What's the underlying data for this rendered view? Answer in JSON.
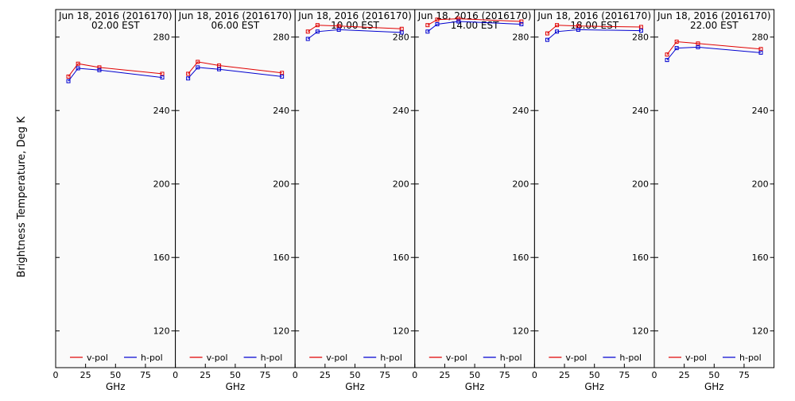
{
  "ylabel": "Brightness Temperature, Deg K",
  "colors": {
    "v_pol": "#e00000",
    "h_pol": "#0000d0",
    "panel_bg": "#fafafa"
  },
  "chart_data": [
    {
      "type": "line",
      "title_line1": "Jun 18, 2016 (2016170)",
      "title_line2": "02.00 EST",
      "xlabel": "GHz",
      "xlim": [
        0,
        100
      ],
      "ylim": [
        100,
        295
      ],
      "xticks": [
        0,
        25,
        50,
        75
      ],
      "yticks": [
        120,
        160,
        200,
        240,
        280
      ],
      "legend_position": "bottom",
      "series": [
        {
          "name": "v-pol",
          "x": [
            10.65,
            18.7,
            36.5,
            89.0
          ],
          "values": [
            258.5,
            265.5,
            263.5,
            260.0
          ]
        },
        {
          "name": "h-pol",
          "x": [
            10.65,
            18.7,
            36.5,
            89.0
          ],
          "values": [
            256.0,
            263.0,
            262.0,
            258.0
          ]
        }
      ]
    },
    {
      "type": "line",
      "title_line1": "Jun 18, 2016 (2016170)",
      "title_line2": "06.00 EST",
      "xlabel": "GHz",
      "xlim": [
        0,
        100
      ],
      "ylim": [
        100,
        295
      ],
      "xticks": [
        0,
        25,
        50,
        75
      ],
      "yticks": [
        120,
        160,
        200,
        240,
        280
      ],
      "legend_position": "bottom",
      "series": [
        {
          "name": "v-pol",
          "x": [
            10.65,
            18.7,
            36.5,
            89.0
          ],
          "values": [
            260.0,
            266.5,
            264.5,
            260.5
          ]
        },
        {
          "name": "h-pol",
          "x": [
            10.65,
            18.7,
            36.5,
            89.0
          ],
          "values": [
            257.5,
            263.5,
            262.5,
            258.5
          ]
        }
      ]
    },
    {
      "type": "line",
      "title_line1": "Jun 18, 2016 (2016170)",
      "title_line2": "10.00 EST",
      "xlabel": "GHz",
      "xlim": [
        0,
        100
      ],
      "ylim": [
        100,
        295
      ],
      "xticks": [
        0,
        25,
        50,
        75
      ],
      "yticks": [
        120,
        160,
        200,
        240,
        280
      ],
      "legend_position": "bottom",
      "series": [
        {
          "name": "v-pol",
          "x": [
            10.65,
            18.7,
            36.5,
            89.0
          ],
          "values": [
            283.0,
            286.5,
            286.0,
            284.5
          ]
        },
        {
          "name": "h-pol",
          "x": [
            10.65,
            18.7,
            36.5,
            89.0
          ],
          "values": [
            279.0,
            283.0,
            284.0,
            282.5
          ]
        }
      ]
    },
    {
      "type": "line",
      "title_line1": "Jun 18, 2016 (2016170)",
      "title_line2": "14.00 EST",
      "xlabel": "GHz",
      "xlim": [
        0,
        100
      ],
      "ylim": [
        100,
        295
      ],
      "xticks": [
        0,
        25,
        50,
        75
      ],
      "yticks": [
        120,
        160,
        200,
        240,
        280
      ],
      "legend_position": "bottom",
      "series": [
        {
          "name": "v-pol",
          "x": [
            10.65,
            18.7,
            36.5,
            89.0
          ],
          "values": [
            286.5,
            289.5,
            290.0,
            288.5
          ]
        },
        {
          "name": "h-pol",
          "x": [
            10.65,
            18.7,
            36.5,
            89.0
          ],
          "values": [
            283.0,
            287.0,
            288.5,
            287.0
          ]
        }
      ]
    },
    {
      "type": "line",
      "title_line1": "Jun 18, 2016 (2016170)",
      "title_line2": "18.00 EST",
      "xlabel": "GHz",
      "xlim": [
        0,
        100
      ],
      "ylim": [
        100,
        295
      ],
      "xticks": [
        0,
        25,
        50,
        75
      ],
      "yticks": [
        120,
        160,
        200,
        240,
        280
      ],
      "legend_position": "bottom",
      "series": [
        {
          "name": "v-pol",
          "x": [
            10.65,
            18.7,
            36.5,
            89.0
          ],
          "values": [
            282.0,
            286.5,
            286.0,
            285.5
          ]
        },
        {
          "name": "h-pol",
          "x": [
            10.65,
            18.7,
            36.5,
            89.0
          ],
          "values": [
            278.5,
            283.0,
            284.0,
            283.5
          ]
        }
      ]
    },
    {
      "type": "line",
      "title_line1": "Jun 18, 2016 (2016170)",
      "title_line2": "22.00 EST",
      "xlabel": "GHz",
      "xlim": [
        0,
        100
      ],
      "ylim": [
        100,
        295
      ],
      "xticks": [
        0,
        25,
        50,
        75
      ],
      "yticks": [
        120,
        160,
        200,
        240,
        280
      ],
      "legend_position": "bottom",
      "series": [
        {
          "name": "v-pol",
          "x": [
            10.65,
            18.7,
            36.5,
            89.0
          ],
          "values": [
            270.5,
            277.5,
            276.5,
            273.5
          ]
        },
        {
          "name": "h-pol",
          "x": [
            10.65,
            18.7,
            36.5,
            89.0
          ],
          "values": [
            267.5,
            274.0,
            274.5,
            271.5
          ]
        }
      ]
    }
  ]
}
